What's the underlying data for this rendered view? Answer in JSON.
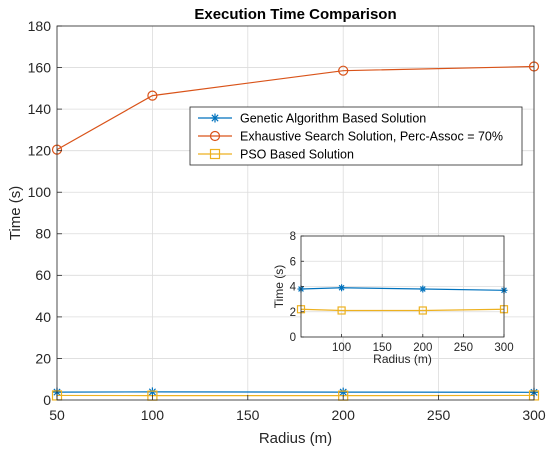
{
  "chart_data": [
    {
      "type": "line",
      "title": "Execution Time Comparison",
      "xlabel": "Radius (m)",
      "ylabel": "Time (s)",
      "xlim": [
        50,
        300
      ],
      "ylim": [
        0,
        180
      ],
      "x_ticks": [
        50,
        100,
        150,
        200,
        250,
        300
      ],
      "y_ticks": [
        0,
        20,
        40,
        60,
        80,
        100,
        120,
        140,
        160,
        180
      ],
      "grid": true,
      "legend_position": "top-right",
      "x": [
        50,
        100,
        200,
        300
      ],
      "series": [
        {
          "name": "Genetic Algorithm Based Solution",
          "values": [
            3.8,
            3.9,
            3.8,
            3.7
          ],
          "color": "#0072bd",
          "marker": "asterisk"
        },
        {
          "name": "Exhaustive Search Solution, Perc-Assoc = 70%",
          "values": [
            120.5,
            146.5,
            158.5,
            160.5
          ],
          "color": "#d95319",
          "marker": "circle"
        },
        {
          "name": "PSO Based Solution",
          "values": [
            2.2,
            2.1,
            2.1,
            2.2
          ],
          "color": "#edb120",
          "marker": "square"
        }
      ]
    },
    {
      "type": "line",
      "title": "",
      "xlabel": "Radius (m)",
      "ylabel": "Time (s)",
      "xlim": [
        50,
        300
      ],
      "ylim": [
        0,
        8
      ],
      "x_ticks": [
        100,
        150,
        200,
        250,
        300
      ],
      "y_ticks": [
        0,
        2,
        4,
        6,
        8
      ],
      "grid": true,
      "x": [
        50,
        100,
        200,
        300
      ],
      "series": [
        {
          "values": [
            3.8,
            3.9,
            3.8,
            3.7
          ],
          "color": "#0072bd",
          "marker": "asterisk"
        },
        {
          "values": [
            2.2,
            2.1,
            2.1,
            2.2
          ],
          "color": "#edb120",
          "marker": "square"
        }
      ]
    }
  ]
}
